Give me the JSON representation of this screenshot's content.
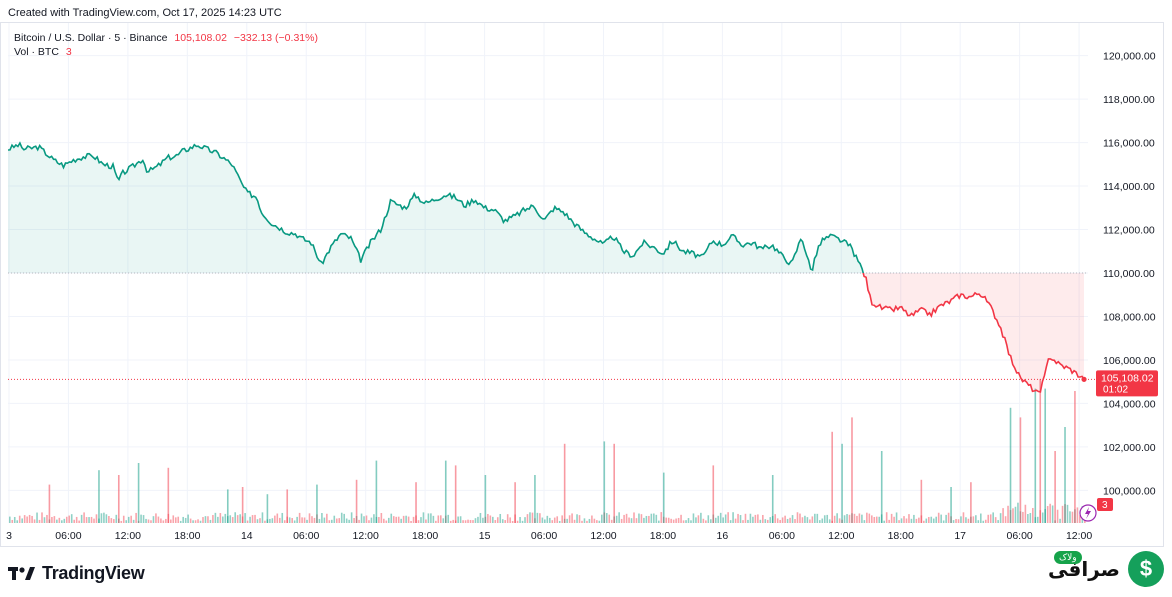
{
  "header": {
    "created": "Created with TradingView.com, Oct 17, 2025 14:23 UTC"
  },
  "legend": {
    "symbol": "Bitcoin / U.S. Dollar · 5 · Binance",
    "price": "105,108.02",
    "change": "−332.13 (−0.31%)",
    "vol_label": "Vol · BTC",
    "vol_value": "3"
  },
  "price_badge": {
    "price": "105,108.02",
    "countdown": "01:02"
  },
  "vol_badge": "3",
  "footer": {
    "logo_text": "TradingView"
  },
  "brand": {
    "text": "صرافی",
    "sub": "ولاک",
    "symbol": "$"
  },
  "colors": {
    "up": "#089981",
    "down": "#f23645",
    "grid": "#f0f3fa"
  },
  "chart_data": {
    "type": "line",
    "title": "Bitcoin / U.S. Dollar · 5 · Binance",
    "baseline": 110000,
    "ylim": [
      98500,
      121500
    ],
    "y_ticks": [
      100000,
      102000,
      104000,
      106000,
      108000,
      110000,
      112000,
      114000,
      116000,
      118000,
      120000
    ],
    "y_tick_labels": [
      "100,000.00",
      "102,000.00",
      "104,000.00",
      "106,000.00",
      "108,000.00",
      "110,000.00",
      "112,000.00",
      "114,000.00",
      "116,000.00",
      "118,000.00",
      "120,000.00"
    ],
    "x_tick_labels": [
      "3",
      "06:00",
      "12:00",
      "18:00",
      "14",
      "06:00",
      "12:00",
      "18:00",
      "15",
      "06:00",
      "12:00",
      "18:00",
      "16",
      "06:00",
      "12:00",
      "18:00",
      "17",
      "06:00",
      "12:00"
    ],
    "x_hours": [
      0,
      6,
      12,
      18,
      24,
      30,
      36,
      42,
      48,
      54,
      60,
      66,
      72,
      78,
      84,
      90,
      96,
      102,
      108
    ],
    "x_range_hours": [
      -0.1,
      108.9
    ],
    "series": [
      {
        "name": "BTC/USD price",
        "hours": [
          -0.1,
          1,
          1.5,
          3,
          4.5,
          5.5,
          6.5,
          7.5,
          8.5,
          9.5,
          10.5,
          11,
          11.5,
          12.5,
          13.5,
          14,
          15,
          16,
          17,
          17.5,
          18.5,
          19,
          20,
          21,
          22.5,
          23.5,
          24,
          25,
          25.5,
          26.5,
          28,
          29,
          29.5,
          30.5,
          31.5,
          32.5,
          33.5,
          34.5,
          35.5,
          36.5,
          37.5,
          38,
          38.5,
          39,
          40,
          41,
          42,
          43,
          44,
          45,
          46,
          47,
          48,
          49,
          50,
          51,
          52,
          53,
          54,
          55,
          56,
          57,
          58,
          59,
          60,
          61,
          62,
          63,
          64,
          65,
          66,
          67,
          68,
          69,
          70,
          71,
          72,
          73,
          74,
          75,
          76,
          77,
          78,
          79,
          80,
          81,
          81.2,
          82,
          83,
          84,
          85,
          85.5,
          86,
          86.5,
          87,
          88,
          89,
          90,
          91,
          92,
          93,
          94,
          95,
          96,
          97,
          98,
          98.5,
          99,
          100,
          101,
          102,
          103,
          104,
          104.5,
          105,
          106,
          107,
          108,
          108.5
        ],
        "values": [
          115700,
          115900,
          115700,
          115800,
          115200,
          114950,
          115200,
          115350,
          115400,
          115000,
          114900,
          114200,
          114600,
          114900,
          115250,
          114650,
          114900,
          115300,
          115400,
          115600,
          115800,
          115900,
          115700,
          115500,
          115000,
          114100,
          113700,
          113500,
          112800,
          112300,
          111900,
          111800,
          111600,
          111400,
          110400,
          111200,
          111800,
          111600,
          110600,
          111400,
          112000,
          112600,
          113300,
          113200,
          113000,
          113600,
          113200,
          113400,
          113600,
          113500,
          113100,
          113400,
          113000,
          112900,
          112400,
          112600,
          112900,
          113100,
          112400,
          113000,
          112800,
          112300,
          111900,
          111600,
          111300,
          111700,
          111000,
          110800,
          111400,
          111200,
          110900,
          111500,
          111000,
          110900,
          110700,
          111500,
          111300,
          111700,
          111300,
          111400,
          111100,
          111300,
          110800,
          110400,
          111700,
          110000,
          110500,
          111500,
          111700,
          111500,
          111200,
          110700,
          110300,
          109700,
          108700,
          108400,
          108300,
          108400,
          108000,
          108300,
          108100,
          108500,
          108700,
          109000,
          108900,
          109100,
          108800,
          108500,
          107600,
          106200,
          105200,
          104800,
          104400,
          105200,
          106200,
          105800,
          105600,
          105300,
          105108
        ]
      }
    ],
    "volume": {
      "label": "Vol · BTC",
      "spike_hours": [
        4,
        9,
        11,
        13,
        16,
        22,
        23.5,
        26,
        28,
        31,
        35,
        37,
        41,
        44,
        45,
        48,
        51,
        53,
        56,
        60,
        61,
        66,
        71,
        77,
        83,
        84,
        85,
        88,
        92,
        95,
        97,
        101,
        102,
        103.5,
        104,
        104.5,
        105.5,
        106.5,
        107.5
      ],
      "spike_values": [
        16,
        22,
        20,
        25,
        23,
        14,
        15,
        12,
        14,
        16,
        18,
        26,
        17,
        26,
        24,
        20,
        17,
        20,
        33,
        34,
        33,
        21,
        24,
        20,
        38,
        33,
        44,
        30,
        18,
        15,
        17,
        48,
        44,
        56,
        60,
        56,
        30,
        40,
        55
      ]
    }
  }
}
